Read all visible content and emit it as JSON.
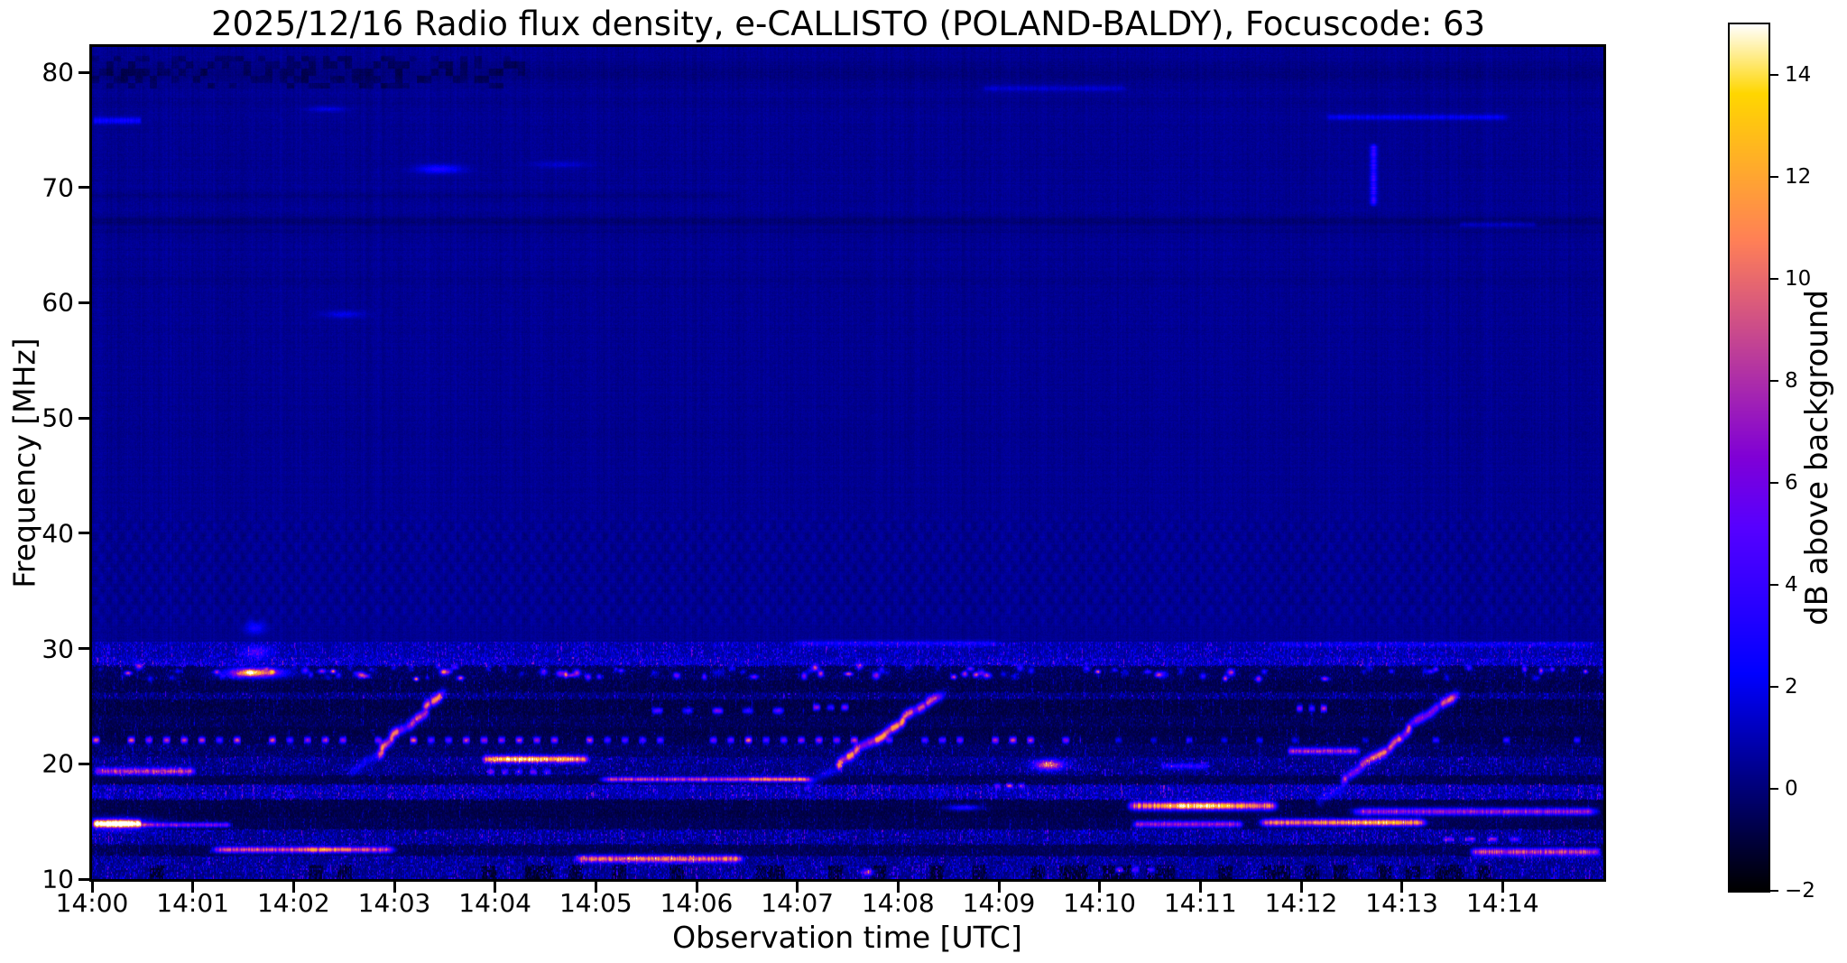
{
  "chart_data": {
    "type": "heatmap",
    "title": "2025/12/16  Radio flux density, e-CALLISTO (POLAND-BALDY), Focuscode: 63",
    "xlabel": "Observation time [UTC]",
    "ylabel": "Frequency [MHz]",
    "date": "2025/12/16",
    "station": "POLAND-BALDY",
    "focuscode": "63",
    "x_tick_labels": [
      "14:00",
      "14:01",
      "14:02",
      "14:03",
      "14:04",
      "14:05",
      "14:06",
      "14:07",
      "14:08",
      "14:09",
      "14:10",
      "14:11",
      "14:12",
      "14:13",
      "14:14"
    ],
    "x_range_minutes": [
      0,
      15
    ],
    "y_tick_values": [
      80,
      70,
      60,
      50,
      40,
      30,
      20,
      10
    ],
    "y_range_mhz": [
      10,
      82.2
    ],
    "grid": false,
    "colorbar": {
      "label": "dB above background",
      "vmin": -2,
      "vmax": 15,
      "colormap": "gnuplot2",
      "ticks": [
        {
          "v": 14,
          "label": "14"
        },
        {
          "v": 12,
          "label": "12"
        },
        {
          "v": 10,
          "label": "10"
        },
        {
          "v": 8,
          "label": "8"
        },
        {
          "v": 6,
          "label": "6"
        },
        {
          "v": 4,
          "label": "4"
        },
        {
          "v": 2,
          "label": "2"
        },
        {
          "v": 0,
          "label": "0"
        },
        {
          "v": -2,
          "label": "−2"
        }
      ]
    },
    "background_level_db": 0.42,
    "ripple": {
      "f0": 31.5,
      "f1": 42.5,
      "amp": 0.17,
      "kt": 7.5,
      "kf": 0.55
    },
    "darklines": [
      {
        "f": 67.05,
        "hw": 0.4,
        "amp": 0.55
      },
      {
        "f": 66.2,
        "hw": 0.22,
        "amp": 0.3
      },
      {
        "f": 69.3,
        "hw": 0.28,
        "amp": 0.3,
        "t1": 6.5
      },
      {
        "f": 61.9,
        "hw": 0.3,
        "amp": 0.18
      },
      {
        "f": 77.4,
        "hw": 0.3,
        "amp": 0.15
      },
      {
        "f": 79.9,
        "hw": 1.0,
        "amp": 0.3
      }
    ],
    "darkpatches": [
      {
        "t0": 0,
        "t1": 4.3,
        "f0": 78.6,
        "f1": 81.4,
        "p": 0.42,
        "amp": 0.85,
        "seed": 501
      }
    ],
    "bands": [
      {
        "f0": 29.2,
        "f1": 30.6,
        "type": "grass",
        "base": 0.4,
        "amp": 1.7
      },
      {
        "f0": 28.5,
        "f1": 29.2,
        "type": "grass",
        "base": 0.6,
        "amp": 2.3
      },
      {
        "f0": 27.3,
        "f1": 28.5,
        "type": "dark",
        "base": -0.7,
        "amp": 1.2
      },
      {
        "f0": 26.2,
        "f1": 27.3,
        "type": "dark",
        "base": -0.9,
        "amp": 1.0
      },
      {
        "f0": 25.6,
        "f1": 26.2,
        "type": "grass",
        "base": -0.4,
        "amp": 1.5
      },
      {
        "f0": 24.2,
        "f1": 25.6,
        "type": "dark",
        "base": -1.0,
        "amp": 0.9
      },
      {
        "f0": 23.2,
        "f1": 24.2,
        "type": "dark",
        "base": -0.8,
        "amp": 1.1
      },
      {
        "f0": 22.4,
        "f1": 23.2,
        "type": "dark",
        "base": -0.95,
        "amp": 0.8
      },
      {
        "f0": 21.7,
        "f1": 22.4,
        "type": "dark",
        "base": -0.85,
        "amp": 0.9
      },
      {
        "f0": 20.6,
        "f1": 21.7,
        "type": "dark",
        "base": -0.6,
        "amp": 1.3
      },
      {
        "f0": 19.9,
        "f1": 20.6,
        "type": "grass",
        "base": -0.2,
        "amp": 1.5
      },
      {
        "f0": 19.0,
        "f1": 19.9,
        "type": "grass",
        "base": -0.3,
        "amp": 1.5
      },
      {
        "f0": 18.2,
        "f1": 19.0,
        "type": "dark",
        "base": -0.85,
        "amp": 0.9
      },
      {
        "f0": 16.9,
        "f1": 18.2,
        "type": "grass",
        "base": 0.3,
        "amp": 2.3
      },
      {
        "f0": 16.0,
        "f1": 16.9,
        "type": "dark",
        "base": -0.9,
        "amp": 0.8
      },
      {
        "f0": 15.3,
        "f1": 16.0,
        "type": "dark",
        "base": -0.95,
        "amp": 0.7
      },
      {
        "f0": 14.3,
        "f1": 15.3,
        "type": "dark",
        "base": -0.8,
        "amp": 0.9
      },
      {
        "f0": 13.0,
        "f1": 14.3,
        "type": "grass",
        "base": -0.1,
        "amp": 2.0
      },
      {
        "f0": 12.0,
        "f1": 13.0,
        "type": "dark",
        "base": -0.8,
        "amp": 0.9
      },
      {
        "f0": 11.2,
        "f1": 12.0,
        "type": "grass",
        "base": -0.1,
        "amp": 1.7
      },
      {
        "f0": 10.0,
        "f1": 11.2,
        "type": "gappy",
        "base": -0.1,
        "amp": 1.9
      }
    ],
    "features": [
      {
        "kind": "hline",
        "t0": 0.0,
        "t1": 0.5,
        "f": 75.8,
        "sf": 0.28,
        "a": 2.2,
        "seed": 11
      },
      {
        "kind": "blob",
        "t": 2.33,
        "st": 0.18,
        "f": 76.8,
        "sf": 0.25,
        "a": 1.4,
        "seed": 12
      },
      {
        "kind": "blob",
        "t": 3.45,
        "st": 0.22,
        "f": 71.6,
        "sf": 0.38,
        "a": 2.6,
        "seed": 13
      },
      {
        "kind": "blob",
        "t": 4.65,
        "st": 0.28,
        "f": 72.0,
        "sf": 0.3,
        "a": 1.1,
        "seed": 14
      },
      {
        "kind": "blob",
        "t": 2.5,
        "st": 0.2,
        "f": 59.0,
        "sf": 0.3,
        "a": 1.5,
        "seed": 15
      },
      {
        "kind": "hline",
        "t0": 8.8,
        "t1": 10.3,
        "f": 78.6,
        "sf": 0.25,
        "a": 1.1,
        "seed": 16
      },
      {
        "kind": "hline",
        "t0": 12.2,
        "t1": 14.1,
        "f": 76.1,
        "sf": 0.24,
        "a": 1.7,
        "seed": 17
      },
      {
        "kind": "vline",
        "t": 12.72,
        "f0": 68.3,
        "f1": 73.9,
        "st": 0.032,
        "a": 3.4,
        "seed": 18
      },
      {
        "kind": "hline",
        "t0": 13.55,
        "t1": 14.35,
        "f": 66.8,
        "sf": 0.22,
        "a": 1.1,
        "seed": 19
      },
      {
        "kind": "hline",
        "t0": 6.9,
        "t1": 9.05,
        "f": 30.45,
        "sf": 0.25,
        "a": 1.9,
        "seed": 20
      },
      {
        "kind": "hline",
        "t0": 11.65,
        "t1": 15.0,
        "f": 30.35,
        "sf": 0.22,
        "a": 1.4,
        "seed": 21
      },
      {
        "kind": "blob",
        "t": 1.62,
        "st": 0.1,
        "f": 31.8,
        "sf": 0.55,
        "a": 2.4,
        "seed": 22
      },
      {
        "kind": "blob",
        "t": 1.63,
        "st": 0.13,
        "f": 29.7,
        "sf": 0.5,
        "a": 3.6,
        "seed": 23
      },
      {
        "kind": "blob",
        "t": 1.62,
        "st": 0.27,
        "f": 27.9,
        "sf": 0.42,
        "a": 10.5,
        "seed": 24
      },
      {
        "kind": "blob",
        "t": 1.57,
        "st": 0.12,
        "f": 27.9,
        "sf": 0.26,
        "a": 4.5,
        "seed": 25
      },
      {
        "kind": "burst",
        "t0": 2.78,
        "t1": 3.52,
        "f0": 20.6,
        "f1": 26.3,
        "a": 12.5,
        "seed": 26
      },
      {
        "kind": "burst",
        "t0": 7.35,
        "t1": 8.42,
        "f0": 19.6,
        "f1": 26.0,
        "a": 12.5,
        "seed": 27
      },
      {
        "kind": "burst",
        "t0": 12.42,
        "t1": 13.52,
        "f0": 18.4,
        "f1": 26.1,
        "a": 11.5,
        "seed": 28
      },
      {
        "kind": "dots",
        "t0": 0.0,
        "t1": 9.8,
        "f": 22.05,
        "sf": 0.27,
        "period": 0.175,
        "duty": 0.46,
        "a": 10.0,
        "seed": 29
      },
      {
        "kind": "dots",
        "t0": 9.8,
        "t1": 15.0,
        "f": 22.05,
        "sf": 0.25,
        "period": 0.35,
        "duty": 0.22,
        "a": 4.5,
        "seed": 30
      },
      {
        "kind": "hline",
        "t0": 3.85,
        "t1": 4.95,
        "f": 20.4,
        "sf": 0.3,
        "a": 12.0,
        "seed": 31
      },
      {
        "kind": "blob",
        "t": 4.3,
        "st": 0.25,
        "f": 20.4,
        "sf": 0.22,
        "a": 2.5,
        "seed": 32
      },
      {
        "kind": "hline",
        "t0": 0.0,
        "t1": 1.05,
        "f": 19.35,
        "sf": 0.3,
        "a": 8.0,
        "seed": 33
      },
      {
        "kind": "dots",
        "t0": 3.5,
        "t1": 4.6,
        "f": 19.3,
        "sf": 0.25,
        "period": 0.14,
        "duty": 0.55,
        "a": 6.0,
        "seed": 34
      },
      {
        "kind": "hline",
        "t0": 5.0,
        "t1": 7.2,
        "f": 18.65,
        "sf": 0.22,
        "a": 9.0,
        "seed": 35
      },
      {
        "kind": "hline",
        "t0": 6.5,
        "t1": 7.15,
        "f": 18.65,
        "sf": 0.24,
        "a": 2.5,
        "seed": 63
      },
      {
        "kind": "dots",
        "t0": 8.95,
        "t1": 9.3,
        "f": 18.1,
        "sf": 0.22,
        "period": 0.12,
        "duty": 0.6,
        "a": 7.5,
        "seed": 36
      },
      {
        "kind": "blob",
        "t": 8.65,
        "st": 0.16,
        "f": 16.2,
        "sf": 0.24,
        "a": 4.2,
        "seed": 37
      },
      {
        "kind": "blob",
        "t": 9.5,
        "st": 0.14,
        "f": 19.9,
        "sf": 0.42,
        "a": 10.0,
        "seed": 38
      },
      {
        "kind": "hline",
        "t0": 10.25,
        "t1": 11.8,
        "f": 16.35,
        "sf": 0.36,
        "a": 11.5,
        "seed": 39
      },
      {
        "kind": "blob",
        "t": 11.0,
        "st": 0.38,
        "f": 16.35,
        "sf": 0.28,
        "a": 4.5,
        "seed": 40
      },
      {
        "kind": "hline",
        "t0": 10.3,
        "t1": 11.45,
        "f": 14.75,
        "sf": 0.27,
        "a": 7.5,
        "seed": 41
      },
      {
        "kind": "hline",
        "t0": 11.55,
        "t1": 13.28,
        "f": 14.9,
        "sf": 0.3,
        "a": 11.0,
        "seed": 42
      },
      {
        "kind": "blob",
        "t": 12.7,
        "st": 0.4,
        "f": 14.9,
        "sf": 0.25,
        "a": 3.0,
        "seed": 43
      },
      {
        "kind": "hline",
        "t0": 12.45,
        "t1": 15.0,
        "f": 15.85,
        "sf": 0.3,
        "a": 8.0,
        "seed": 44
      },
      {
        "kind": "hline",
        "t0": 13.65,
        "t1": 15.0,
        "f": 12.35,
        "sf": 0.32,
        "a": 9.5,
        "seed": 45
      },
      {
        "kind": "dots",
        "t0": 13.4,
        "t1": 14.25,
        "f": 13.45,
        "sf": 0.2,
        "period": 0.22,
        "duty": 0.55,
        "a": 6.5,
        "seed": 46
      },
      {
        "kind": "hline",
        "t0": 1.15,
        "t1": 3.05,
        "f": 12.55,
        "sf": 0.27,
        "a": 9.5,
        "seed": 47
      },
      {
        "kind": "blob",
        "t": 2.35,
        "st": 0.35,
        "f": 12.55,
        "sf": 0.22,
        "a": 2.5,
        "seed": 48
      },
      {
        "kind": "hline",
        "t0": 4.75,
        "t1": 6.5,
        "f": 11.75,
        "sf": 0.3,
        "a": 10.0,
        "seed": 49
      },
      {
        "kind": "dots",
        "t0": 10.15,
        "t1": 10.6,
        "f": 10.8,
        "sf": 0.24,
        "period": 0.16,
        "duty": 0.55,
        "a": 8.0,
        "seed": 50
      },
      {
        "kind": "blob",
        "t": 7.7,
        "st": 0.06,
        "f": 10.6,
        "sf": 0.25,
        "a": 7.0,
        "seed": 51
      },
      {
        "kind": "dots",
        "t0": 5.25,
        "t1": 7.05,
        "f": 24.6,
        "sf": 0.26,
        "period": 0.3,
        "duty": 0.4,
        "a": 7.0,
        "seed": 52
      },
      {
        "kind": "dots",
        "t0": 7.15,
        "t1": 7.55,
        "f": 24.9,
        "sf": 0.26,
        "period": 0.14,
        "duty": 0.6,
        "a": 7.5,
        "seed": 53
      },
      {
        "kind": "dots",
        "t0": 11.95,
        "t1": 12.3,
        "f": 24.8,
        "sf": 0.28,
        "period": 0.12,
        "duty": 0.6,
        "a": 8.5,
        "seed": 54
      },
      {
        "kind": "hline",
        "t0": 11.85,
        "t1": 12.6,
        "f": 21.1,
        "sf": 0.28,
        "a": 8.0,
        "seed": 55
      },
      {
        "kind": "hline",
        "t0": 10.6,
        "t1": 11.1,
        "f": 19.8,
        "sf": 0.25,
        "a": 3.5,
        "seed": 56
      },
      {
        "kind": "hline",
        "t0": 0.0,
        "t1": 0.5,
        "f": 14.8,
        "sf": 0.3,
        "a": 16.0,
        "seed": 57
      },
      {
        "kind": "blob",
        "t": 0.25,
        "st": 0.32,
        "f": 14.8,
        "sf": 0.5,
        "a": 6.0,
        "seed": 58
      },
      {
        "kind": "hline",
        "t0": 0.45,
        "t1": 1.4,
        "f": 14.7,
        "sf": 0.2,
        "a": 6.5,
        "seed": 59
      },
      {
        "kind": "spotsrow",
        "t0": 0.0,
        "t1": 3.6,
        "f0": 27.35,
        "f1": 28.45,
        "density": 0.5,
        "a": 11.0,
        "cell": 0.055,
        "seed": 60
      },
      {
        "kind": "spotsrow",
        "t0": 3.6,
        "t1": 11.6,
        "f0": 27.35,
        "f1": 28.45,
        "density": 0.36,
        "a": 9.0,
        "cell": 0.055,
        "seed": 61
      },
      {
        "kind": "spotsrow",
        "t0": 11.6,
        "t1": 15.0,
        "f0": 27.35,
        "f1": 28.45,
        "density": 0.3,
        "a": 8.0,
        "cell": 0.055,
        "seed": 62
      }
    ]
  }
}
